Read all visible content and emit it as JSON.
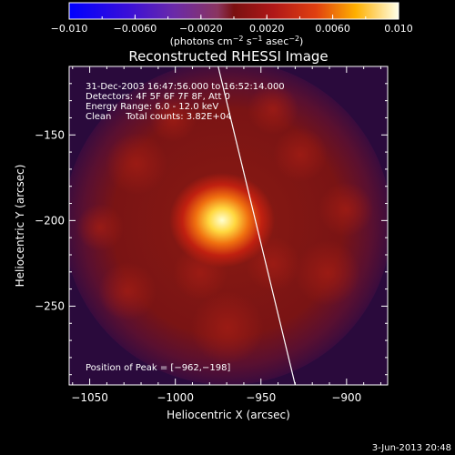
{
  "chart_data": {
    "type": "heatmap",
    "title": "Reconstructed RHESSI Image",
    "xlabel": "Heliocentric X (arcsec)",
    "ylabel": "Heliocentric Y (arcsec)",
    "xlim": [
      -1062,
      -876
    ],
    "ylim": [
      -296,
      -110
    ],
    "x_ticks": [
      {
        "value": -1050,
        "label": "−1050"
      },
      {
        "value": -1000,
        "label": "−1000"
      },
      {
        "value": -950,
        "label": "−950"
      },
      {
        "value": -900,
        "label": "−900"
      }
    ],
    "y_ticks": [
      {
        "value": -150,
        "label": "−150"
      },
      {
        "value": -200,
        "label": "−200"
      },
      {
        "value": -250,
        "label": "−250"
      }
    ],
    "colorbar": {
      "range": [
        -0.01,
        0.01
      ],
      "ticks": [
        {
          "value": -0.01,
          "label": "−0.010"
        },
        {
          "value": -0.006,
          "label": "−0.0060"
        },
        {
          "value": -0.002,
          "label": "−0.0020"
        },
        {
          "value": 0.002,
          "label": "0.0020"
        },
        {
          "value": 0.006,
          "label": "0.0060"
        },
        {
          "value": 0.01,
          "label": "0.010"
        }
      ],
      "label_main": "(photons cm",
      "label_exp1": "−2",
      "label_mid": " s",
      "label_exp2": "−1",
      "label_tail": " asec",
      "label_exp3": "−2",
      "label_close": ")"
    },
    "peak": {
      "x": -962,
      "y": -198,
      "value": 0.01
    },
    "annotations": [
      "31-Dec-2003 16:47:56.000 to 16:52:14.000",
      "Detectors: 4F 5F 6F 7F 8F, Att 0",
      "Energy Range: 6.0 - 12.0 keV",
      "Clean     Total counts: 3.82E+04"
    ],
    "peak_label": "Position of Peak = [−962,−198]",
    "limb_line": {
      "x1": -975,
      "y1": -110,
      "x2": -930,
      "y2": -296
    },
    "colors": {
      "limb": "#ffffff",
      "background": "#000000"
    }
  },
  "footer": {
    "date": "3-Jun-2013 20:48"
  }
}
